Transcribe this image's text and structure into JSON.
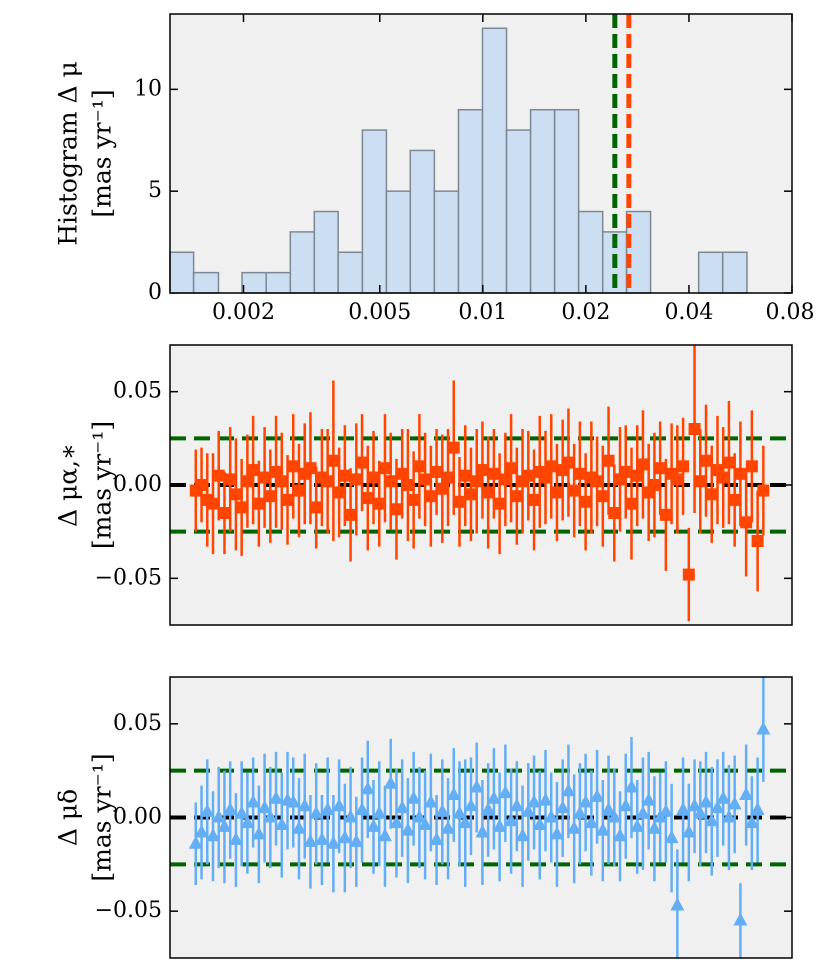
{
  "chart_data": [
    {
      "type": "histogram",
      "ylabel": [
        "Histogram Δ μ",
        "[mas yr⁻¹]"
      ],
      "bins": [
        0.00122,
        0.00143,
        0.00169,
        0.00198,
        0.00233,
        0.00274,
        0.00322,
        0.00378,
        0.00445,
        0.00523,
        0.00614,
        0.00722,
        0.00849,
        0.00998,
        0.01173,
        0.01379,
        0.01621,
        0.01905,
        0.0224,
        0.0263,
        0.0309,
        0.0364,
        0.0427,
        0.0502,
        0.0591
      ],
      "counts": [
        2,
        1,
        0,
        1,
        1,
        3,
        4,
        2,
        8,
        5,
        7,
        5,
        9,
        13,
        8,
        9,
        9,
        4,
        3,
        4,
        0,
        0,
        2,
        2
      ],
      "color": "#c6dbf2",
      "edgecolor": "#7d8894",
      "xscale": "log",
      "xlim": [
        0.00122,
        0.08
      ],
      "xticks": [
        0.002,
        0.005,
        0.01,
        0.02,
        0.04,
        0.08
      ],
      "ylim": [
        0,
        13.7
      ],
      "yticks": [
        0,
        5,
        10
      ],
      "vlines": [
        {
          "value": 0.0243,
          "color": "#006400"
        },
        {
          "value": 0.0267,
          "color": "#ff4500"
        }
      ]
    },
    {
      "type": "errorbar",
      "ylabel": [
        "Δ μα,∗",
        "[mas yr⁻¹]"
      ],
      "marker": "square",
      "color": "#ff4500",
      "values": [
        -0.003,
        0.0,
        -0.008,
        -0.01,
        0.005,
        -0.015,
        0.003,
        -0.005,
        -0.012,
        0.002,
        0.008,
        -0.01,
        0.004,
        -0.006,
        0.007,
        0.002,
        -0.008,
        0.01,
        -0.003,
        0.006,
        0.009,
        -0.012,
        0.004,
        0.002,
        0.013,
        -0.004,
        0.005,
        -0.016,
        0.003,
        0.012,
        -0.007,
        0.004,
        -0.01,
        0.009,
        0.002,
        -0.013,
        0.006,
        0.0,
        -0.008,
        0.01,
        0.003,
        -0.006,
        0.007,
        -0.002,
        0.004,
        0.02,
        -0.009,
        0.005,
        -0.005,
        0.002,
        0.008,
        -0.004,
        0.006,
        -0.01,
        0.003,
        0.009,
        -0.006,
        0.002,
        0.005,
        -0.008,
        0.007,
        0.004,
        0.01,
        -0.004,
        0.008,
        0.012,
        -0.003,
        0.006,
        -0.009,
        0.004,
        0.002,
        -0.006,
        0.013,
        -0.015,
        0.003,
        0.007,
        -0.01,
        0.005,
        0.011,
        -0.004,
        0.0,
        0.009,
        -0.016,
        0.006,
        0.003,
        0.01,
        -0.048,
        0.03,
        0.002,
        0.013,
        -0.005,
        0.008,
        0.004,
        0.012,
        -0.008,
        0.006,
        -0.02,
        0.01,
        -0.03,
        -0.003
      ],
      "errors": [
        0.022,
        0.02,
        0.025,
        0.027,
        0.024,
        0.022,
        0.028,
        0.03,
        0.026,
        0.025,
        0.029,
        0.023,
        0.027,
        0.025,
        0.03,
        0.026,
        0.024,
        0.028,
        0.025,
        0.027,
        0.03,
        0.022,
        0.026,
        0.028,
        0.043,
        0.024,
        0.027,
        0.025,
        0.03,
        0.026,
        0.028,
        0.025,
        0.023,
        0.029,
        0.026,
        0.027,
        0.024,
        0.03,
        0.026,
        0.028,
        0.025,
        0.027,
        0.023,
        0.029,
        0.026,
        0.036,
        0.024,
        0.027,
        0.025,
        0.028,
        0.026,
        0.03,
        0.024,
        0.027,
        0.025,
        0.029,
        0.026,
        0.028,
        0.024,
        0.027,
        0.03,
        0.025,
        0.028,
        0.026,
        0.027,
        0.029,
        0.025,
        0.028,
        0.026,
        0.03,
        0.024,
        0.027,
        0.029,
        0.026,
        0.028,
        0.025,
        0.03,
        0.027,
        0.029,
        0.026,
        0.028,
        0.025,
        0.03,
        0.027,
        0.029,
        0.026,
        0.025,
        0.045,
        0.028,
        0.03,
        0.026,
        0.029,
        0.027,
        0.033,
        0.025,
        0.028,
        0.029,
        0.03,
        0.027,
        0.024
      ],
      "ylim": [
        -0.075,
        0.075
      ],
      "yticks": [
        {
          "value": -0.05,
          "label": "−0.05"
        },
        {
          "value": 0,
          "label": "0.00"
        },
        {
          "value": 0.05,
          "label": "0.05"
        }
      ],
      "hlines": [
        {
          "value": 0.025,
          "color": "#006400"
        },
        {
          "value": 0,
          "color": "#000000"
        },
        {
          "value": -0.025,
          "color": "#006400"
        }
      ]
    },
    {
      "type": "errorbar",
      "ylabel": [
        "Δ μδ",
        "[mas yr⁻¹]"
      ],
      "marker": "triangle",
      "color": "#63aef5",
      "values": [
        -0.014,
        -0.008,
        0.003,
        -0.01,
        0.0,
        -0.005,
        0.004,
        -0.012,
        0.002,
        -0.003,
        0.008,
        -0.009,
        0.005,
        0.0,
        0.01,
        -0.004,
        0.009,
        0.008,
        -0.006,
        0.006,
        -0.013,
        0.002,
        -0.012,
        0.004,
        -0.014,
        0.006,
        -0.011,
        0.0,
        -0.013,
        0.004,
        0.015,
        -0.005,
        0.002,
        -0.01,
        0.018,
        -0.003,
        0.005,
        -0.007,
        0.01,
        0.0,
        -0.004,
        0.008,
        -0.012,
        0.003,
        -0.006,
        0.012,
        0.002,
        -0.003,
        0.006,
        0.016,
        -0.008,
        0.004,
        0.01,
        -0.005,
        0.013,
        -0.002,
        0.006,
        -0.01,
        0.003,
        0.008,
        -0.004,
        0.009,
        0.0,
        -0.009,
        0.005,
        0.014,
        -0.006,
        0.002,
        0.008,
        -0.003,
        0.011,
        -0.007,
        0.004,
        0.0,
        -0.01,
        0.006,
        0.016,
        -0.005,
        0.002,
        0.009,
        -0.006,
        0.0,
        0.003,
        -0.011,
        -0.047,
        0.004,
        -0.008,
        0.006,
        0.002,
        0.008,
        -0.002,
        0.005,
        0.01,
        0.0,
        0.007,
        -0.055,
        0.012,
        -0.003,
        0.004,
        0.047
      ],
      "errors": [
        0.022,
        0.025,
        0.028,
        0.024,
        0.027,
        0.03,
        0.026,
        0.025,
        0.028,
        0.027,
        0.024,
        0.026,
        0.029,
        0.027,
        0.025,
        0.028,
        0.026,
        0.024,
        0.027,
        0.028,
        0.025,
        0.027,
        0.024,
        0.028,
        0.026,
        0.025,
        0.029,
        0.027,
        0.024,
        0.028,
        0.026,
        0.025,
        0.028,
        0.027,
        0.024,
        0.029,
        0.026,
        0.028,
        0.025,
        0.027,
        0.029,
        0.026,
        0.024,
        0.028,
        0.027,
        0.025,
        0.028,
        0.034,
        0.026,
        0.024,
        0.028,
        0.025,
        0.027,
        0.029,
        0.026,
        0.028,
        0.024,
        0.027,
        0.026,
        0.025,
        0.029,
        0.027,
        0.024,
        0.028,
        0.026,
        0.025,
        0.029,
        0.027,
        0.026,
        0.028,
        0.025,
        0.027,
        0.029,
        0.026,
        0.024,
        0.028,
        0.027,
        0.025,
        0.03,
        0.026,
        0.028,
        0.024,
        0.027,
        0.029,
        0.03,
        0.028,
        0.026,
        0.025,
        0.028,
        0.027,
        0.029,
        0.026,
        0.025,
        0.028,
        0.026,
        0.02,
        0.027,
        0.025,
        0.028,
        0.028
      ],
      "ylim": [
        -0.075,
        0.075
      ],
      "yticks": [
        {
          "value": -0.05,
          "label": "−0.05"
        },
        {
          "value": 0,
          "label": "0.00"
        },
        {
          "value": 0.05,
          "label": "0.05"
        }
      ],
      "hlines": [
        {
          "value": 0.025,
          "color": "#006400"
        },
        {
          "value": 0,
          "color": "#000000"
        },
        {
          "value": -0.025,
          "color": "#006400"
        }
      ]
    }
  ]
}
